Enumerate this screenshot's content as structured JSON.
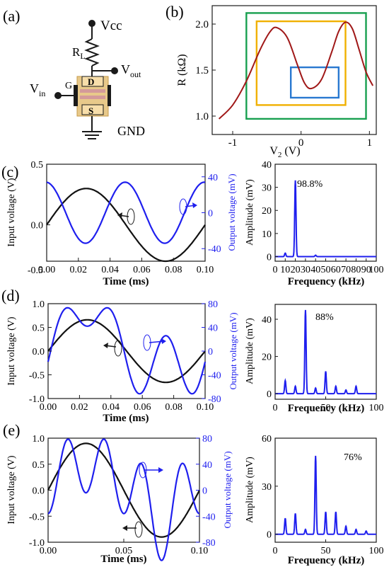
{
  "panels": {
    "a": "(a)",
    "b": "(b)",
    "c": "(c)",
    "d": "(d)",
    "e": "(e)"
  },
  "circuit": {
    "vcc": "Vcc",
    "rl_main": "R",
    "rl_sub": "L",
    "vout_main": "V",
    "vout_sub": "out",
    "vin_main": "V",
    "vin_sub": "in",
    "gate": "G",
    "drain": "D",
    "source": "S",
    "gnd": "GND"
  },
  "chart_data": [
    {
      "id": "b",
      "type": "line",
      "xlabel_main": "V",
      "xlabel_sub": "2",
      "xlabel_unit": " (V)",
      "ylabel": "R (kΩ)",
      "xlim": [
        -1.3,
        1.1
      ],
      "ylim": [
        0.8,
        2.2
      ],
      "xticks": [
        -1,
        0,
        1
      ],
      "yticks": [
        1.0,
        1.5,
        2.0
      ],
      "ytick_labels": [
        "1.0",
        "1.5",
        "2.0"
      ],
      "series": [
        {
          "color": "#a01818",
          "x": [
            -1.2,
            -1.0,
            -0.8,
            -0.6,
            -0.45,
            -0.35,
            -0.2,
            -0.05,
            0.05,
            0.15,
            0.3,
            0.45,
            0.55,
            0.65,
            0.75,
            0.85,
            0.95,
            1.05
          ],
          "y": [
            0.97,
            1.12,
            1.38,
            1.72,
            1.92,
            1.96,
            1.85,
            1.55,
            1.36,
            1.3,
            1.4,
            1.7,
            1.92,
            2.02,
            1.95,
            1.72,
            1.48,
            1.33
          ]
        }
      ],
      "boxes": [
        {
          "color": "#18a050",
          "x": [
            -0.8,
            0.95
          ],
          "y": [
            0.97,
            2.12
          ]
        },
        {
          "color": "#f0b000",
          "x": [
            -0.65,
            0.65
          ],
          "y": [
            1.12,
            2.03
          ]
        },
        {
          "color": "#2878d0",
          "x": [
            -0.15,
            0.55
          ],
          "y": [
            1.2,
            1.53
          ]
        }
      ]
    },
    {
      "id": "c-time",
      "type": "line",
      "xlabel": "Time (ms)",
      "ylabel_left": "Input voltage (V)",
      "ylabel_right": "Output voltage (mV)",
      "xlim": [
        0,
        0.1
      ],
      "ylim_left": [
        -0.3,
        0.5
      ],
      "ylim_right": [
        -54,
        54
      ],
      "xticks": [
        "0.00",
        "0.02",
        "0.04",
        "0.06",
        "0.08",
        "0.10"
      ],
      "yticks_left": [
        "-0.5",
        "0.0",
        "0.5"
      ],
      "yticks_right": [
        "-40",
        "0",
        "40"
      ],
      "input": {
        "amplitude": 0.3,
        "period": 0.1,
        "color": "#111111"
      },
      "output": {
        "amplitude": 34,
        "period": 0.05,
        "phase_shift": 0.0125,
        "color": "#1f1fee"
      }
    },
    {
      "id": "c-fft",
      "type": "line",
      "xlabel": "Frequency (kHz)",
      "ylabel": "Amplitude (mV)",
      "xlim": [
        0,
        100
      ],
      "ylim": [
        -2,
        40
      ],
      "xticks": [
        0,
        10,
        20,
        30,
        40,
        50,
        60,
        70,
        80,
        90,
        100
      ],
      "yticks": [
        0,
        10,
        20,
        30,
        40
      ],
      "annotation": "98.8%",
      "peaks": [
        {
          "f": 20,
          "a": 33
        },
        {
          "f": 10,
          "a": 1.5
        },
        {
          "f": 40,
          "a": 0.6
        }
      ]
    },
    {
      "id": "d-time",
      "type": "line",
      "xlabel": "Time (ms)",
      "ylabel_left": "Input voltage (V)",
      "ylabel_right": "Output voltage (mV)",
      "xlim": [
        0,
        0.1
      ],
      "ylim_left": [
        -1.0,
        1.0
      ],
      "ylim_right": [
        -80,
        80
      ],
      "xticks": [
        "0.00",
        "0.02",
        "0.04",
        "0.06",
        "0.08",
        "0.10"
      ],
      "yticks_left": [
        "-1.0",
        "-0.5",
        "0.0",
        "0.5",
        "1.0"
      ],
      "yticks_right": [
        "-80",
        "-40",
        "0",
        "40",
        "80"
      ],
      "input": {
        "amplitude": 0.66,
        "period": 0.1,
        "color": "#111111"
      },
      "output": {
        "color": "#1f1fee"
      }
    },
    {
      "id": "d-fft",
      "type": "line",
      "xlabel": "Frequency (kHz)",
      "ylabel": "Amplitude (mV)",
      "xlim": [
        0,
        100
      ],
      "ylim": [
        -3,
        48
      ],
      "xticks": [
        0,
        50,
        100
      ],
      "yticks": [
        0,
        20,
        40
      ],
      "annotation": "88%",
      "peaks": [
        {
          "f": 10,
          "a": 7
        },
        {
          "f": 20,
          "a": 4
        },
        {
          "f": 30,
          "a": 45
        },
        {
          "f": 40,
          "a": 3
        },
        {
          "f": 50,
          "a": 12
        },
        {
          "f": 60,
          "a": 4
        },
        {
          "f": 70,
          "a": 2
        },
        {
          "f": 80,
          "a": 4
        }
      ]
    },
    {
      "id": "e-time",
      "type": "line",
      "xlabel": "Time (ms)",
      "ylabel_left": "Input voltage (V)",
      "ylabel_right": "Output voltage (mV)",
      "xlim": [
        0,
        0.1
      ],
      "ylim_left": [
        -1.0,
        1.0
      ],
      "ylim_right": [
        -80,
        80
      ],
      "xticks": [
        "0.00",
        "0.05",
        "0.10"
      ],
      "yticks_left": [
        "-1.0",
        "-0.5",
        "0.0",
        "0.5",
        "1.0"
      ],
      "yticks_right": [
        "-80",
        "-40",
        "0",
        "40",
        "80"
      ],
      "input": {
        "amplitude": 0.9,
        "period": 0.1,
        "color": "#111111"
      },
      "output": {
        "color": "#1f1fee"
      }
    },
    {
      "id": "e-fft",
      "type": "line",
      "xlabel": "Frequency (kHz)",
      "ylabel": "Amplitude (mV)",
      "xlim": [
        0,
        100
      ],
      "ylim": [
        -5,
        60
      ],
      "xticks": [
        0,
        50,
        100
      ],
      "yticks": [
        0,
        30,
        60
      ],
      "annotation": "76%",
      "peaks": [
        {
          "f": 10,
          "a": 10
        },
        {
          "f": 20,
          "a": 13
        },
        {
          "f": 30,
          "a": 3
        },
        {
          "f": 40,
          "a": 49
        },
        {
          "f": 50,
          "a": 14
        },
        {
          "f": 60,
          "a": 14
        },
        {
          "f": 70,
          "a": 5
        },
        {
          "f": 80,
          "a": 3
        },
        {
          "f": 90,
          "a": 2
        }
      ]
    }
  ]
}
